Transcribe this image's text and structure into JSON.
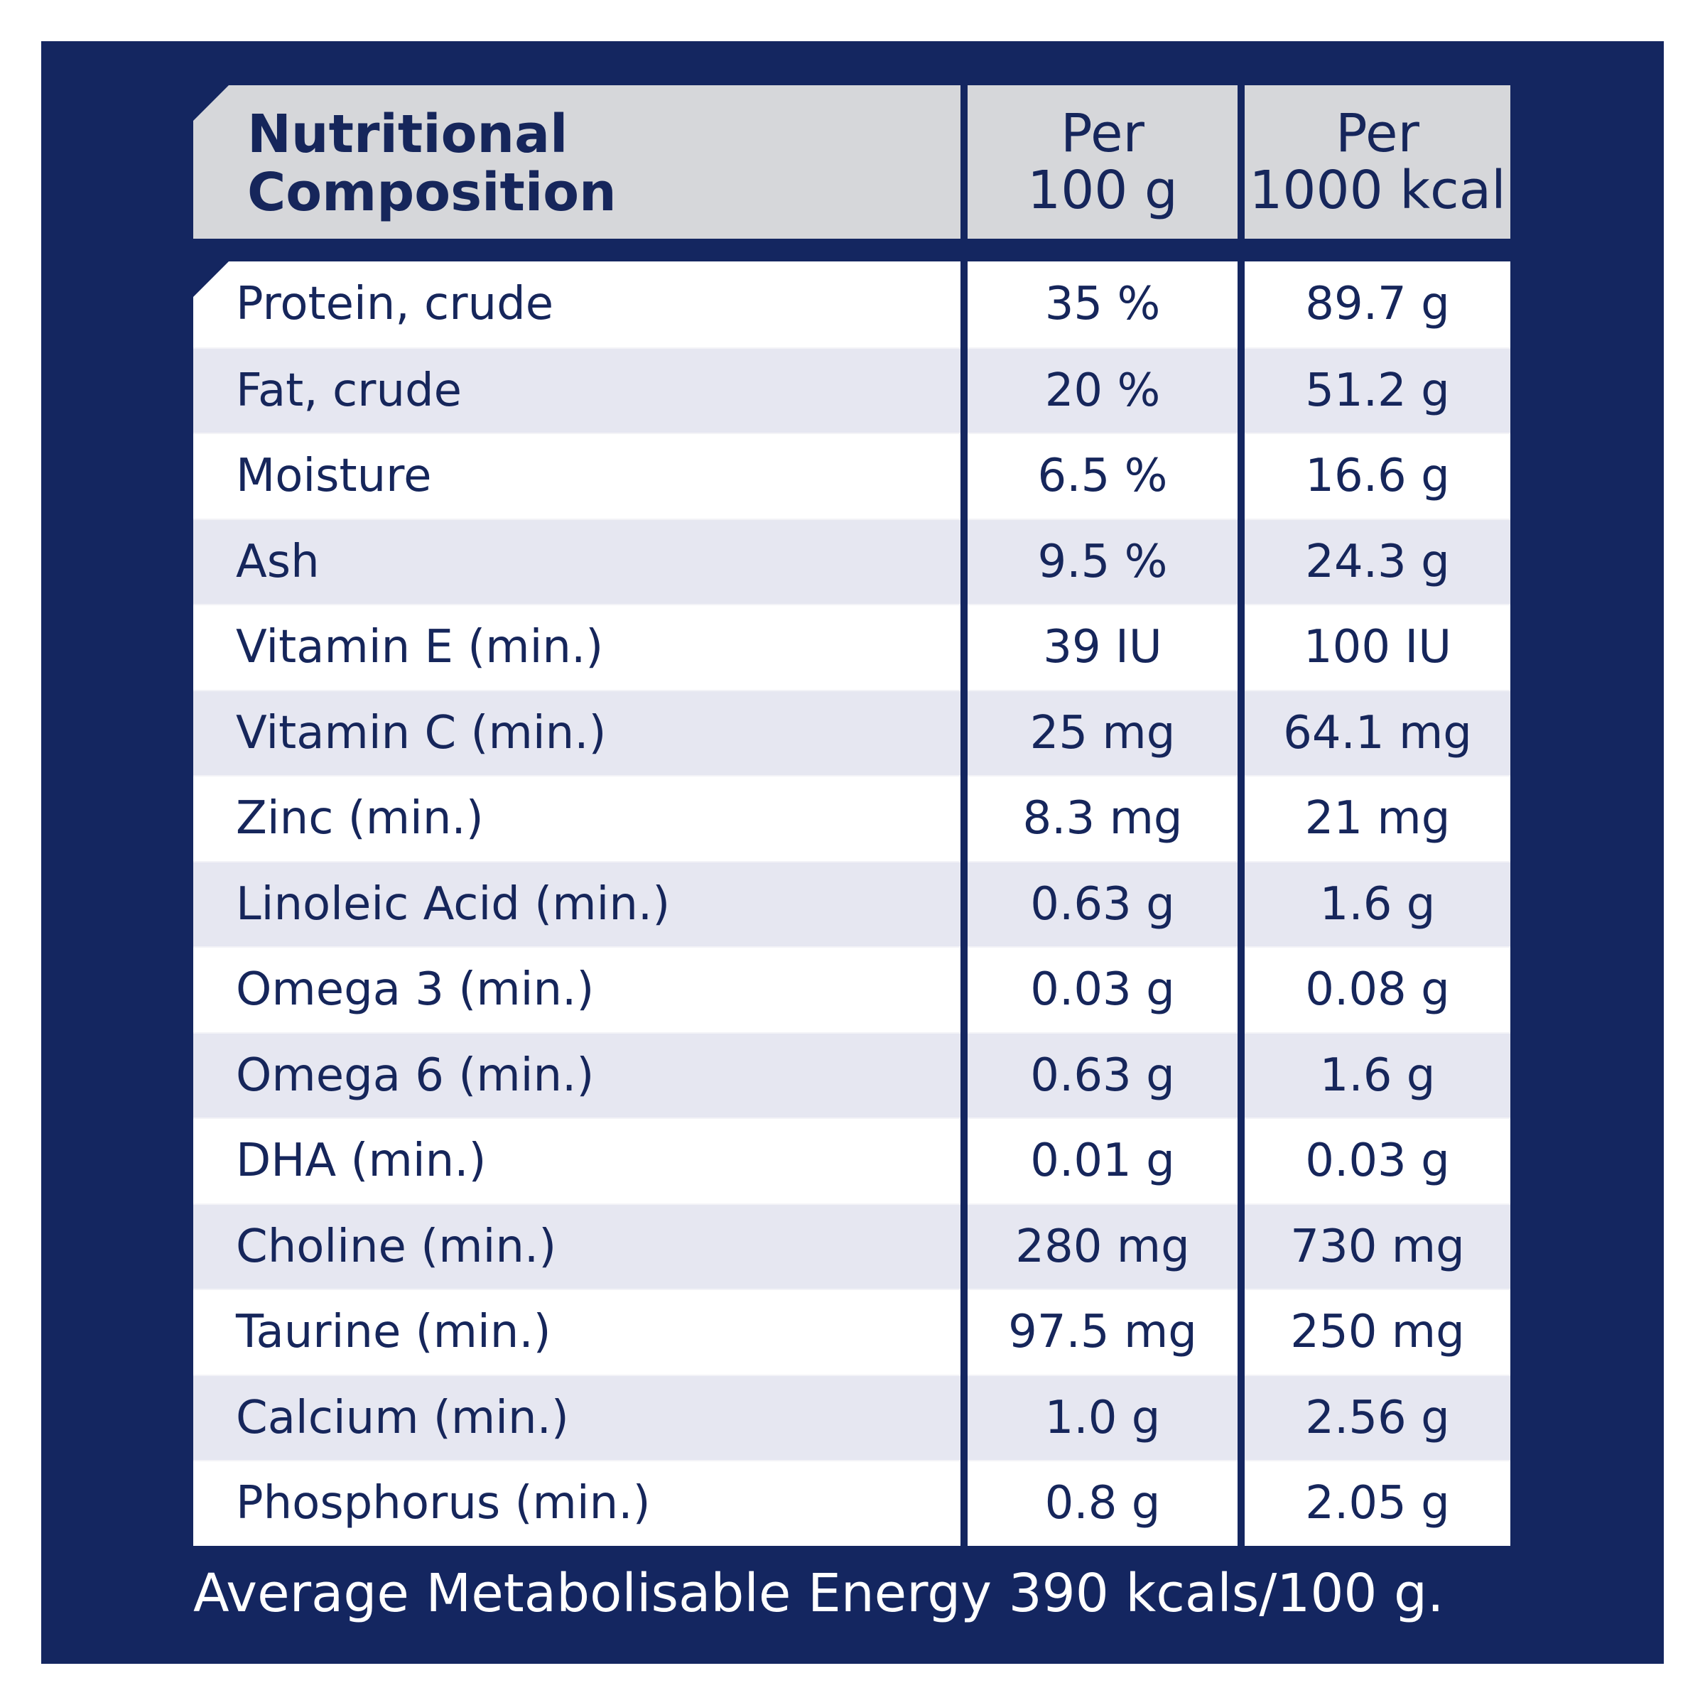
{
  "table": {
    "header": {
      "name_line1": "Nutritional",
      "name_line2": "Composition",
      "col1_line1": "Per",
      "col1_line2": "100 g",
      "col2_line1": "Per",
      "col2_line2": "1000 kcal"
    },
    "rows": [
      {
        "name": "Protein, crude",
        "per_100g": "35 %",
        "per_1000kcal": "89.7 g"
      },
      {
        "name": "Fat, crude",
        "per_100g": "20 %",
        "per_1000kcal": "51.2 g"
      },
      {
        "name": "Moisture",
        "per_100g": "6.5 %",
        "per_1000kcal": "16.6 g"
      },
      {
        "name": "Ash",
        "per_100g": "9.5 %",
        "per_1000kcal": "24.3 g"
      },
      {
        "name": "Vitamin E (min.)",
        "per_100g": "39 IU",
        "per_1000kcal": "100 IU"
      },
      {
        "name": "Vitamin C (min.)",
        "per_100g": "25 mg",
        "per_1000kcal": "64.1 mg"
      },
      {
        "name": "Zinc (min.)",
        "per_100g": "8.3 mg",
        "per_1000kcal": "21 mg"
      },
      {
        "name": "Linoleic Acid (min.)",
        "per_100g": "0.63 g",
        "per_1000kcal": "1.6 g"
      },
      {
        "name": "Omega 3 (min.)",
        "per_100g": "0.03 g",
        "per_1000kcal": "0.08 g"
      },
      {
        "name": "Omega 6 (min.)",
        "per_100g": "0.63 g",
        "per_1000kcal": "1.6 g"
      },
      {
        "name": "DHA (min.)",
        "per_100g": "0.01 g",
        "per_1000kcal": "0.03 g"
      },
      {
        "name": "Choline (min.)",
        "per_100g": "280 mg",
        "per_1000kcal": "730 mg"
      },
      {
        "name": "Taurine (min.)",
        "per_100g": "97.5 mg",
        "per_1000kcal": "250 mg"
      },
      {
        "name": "Calcium (min.)",
        "per_100g": "1.0 g",
        "per_1000kcal": "2.56 g"
      },
      {
        "name": "Phosphorus (min.)",
        "per_100g": "0.8 g",
        "per_1000kcal": "2.05 g"
      }
    ]
  },
  "footer": {
    "note": "Average Metabolisable Energy 390 kcals/100 g."
  },
  "colors": {
    "panel": "#142660",
    "header_bg": "#d6d7da",
    "row_alt": "#e6e7f1",
    "text": "#16265b"
  }
}
